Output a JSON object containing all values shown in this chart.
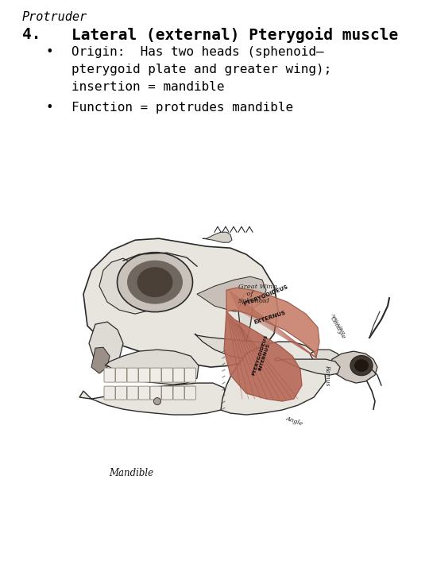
{
  "background_color": "#ffffff",
  "title_italic": "Protruder",
  "heading_number": "4.",
  "heading_text": "Lateral (external) Pterygoid muscle",
  "bullet1_text_line1": "Origin:  Has two heads (sphenoid—",
  "bullet1_text_line2": "pterygoid plate and greater wing);",
  "bullet1_text_line3": "insertion = mandible",
  "bullet2_text": "Function = protrudes mandible",
  "text_color": "#000000",
  "fig_width": 5.4,
  "fig_height": 7.2,
  "dpi": 100,
  "title_fontsize": 11,
  "heading_fontsize": 14,
  "bullet_fontsize": 11.5
}
